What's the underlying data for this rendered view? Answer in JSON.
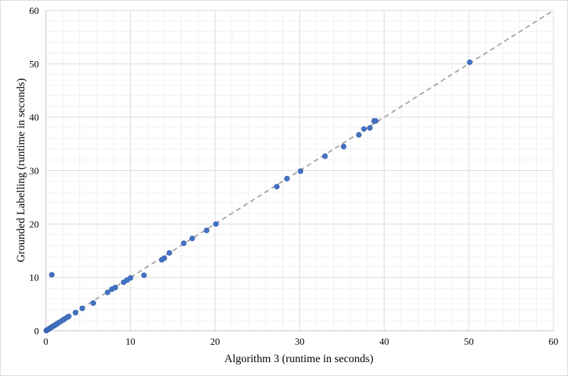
{
  "chart_data": {
    "type": "scatter",
    "title": "",
    "xlabel": "Algorithm 3 (runtime in seconds)",
    "ylabel": "Grounded Labelling (runtime in seconds)",
    "xlim": [
      0,
      60
    ],
    "ylim": [
      0,
      60
    ],
    "xticks": [
      "0",
      "10",
      "20",
      "30",
      "40",
      "50",
      "60"
    ],
    "yticks": [
      "0",
      "10",
      "20",
      "30",
      "40",
      "50",
      "60"
    ],
    "grid": true,
    "minor_grid": true,
    "legend": "none",
    "reference_line": {
      "style": "dashed",
      "from": [
        0,
        0
      ],
      "to": [
        60,
        60
      ]
    },
    "points": [
      [
        0.05,
        0.05
      ],
      [
        0.1,
        0.1
      ],
      [
        0.15,
        0.15
      ],
      [
        0.2,
        0.2
      ],
      [
        0.3,
        0.3
      ],
      [
        0.4,
        0.4
      ],
      [
        0.5,
        0.5
      ],
      [
        0.6,
        0.6
      ],
      [
        0.7,
        0.7
      ],
      [
        0.8,
        0.8
      ],
      [
        0.9,
        0.9
      ],
      [
        1.0,
        1.0
      ],
      [
        1.1,
        1.1
      ],
      [
        1.2,
        1.2
      ],
      [
        1.3,
        1.3
      ],
      [
        1.5,
        1.5
      ],
      [
        1.7,
        1.7
      ],
      [
        2.0,
        2.0
      ],
      [
        2.2,
        2.2
      ],
      [
        2.5,
        2.5
      ],
      [
        2.7,
        2.7
      ],
      [
        3.5,
        3.4
      ],
      [
        4.3,
        4.2
      ],
      [
        5.6,
        5.2
      ],
      [
        7.3,
        7.2
      ],
      [
        7.8,
        7.8
      ],
      [
        8.2,
        8.1
      ],
      [
        9.2,
        9.1
      ],
      [
        9.6,
        9.5
      ],
      [
        10.0,
        9.9
      ],
      [
        11.6,
        10.4
      ],
      [
        0.7,
        10.5
      ],
      [
        13.7,
        13.3
      ],
      [
        14.0,
        13.6
      ],
      [
        14.6,
        14.6
      ],
      [
        16.3,
        16.4
      ],
      [
        17.3,
        17.3
      ],
      [
        19.0,
        18.8
      ],
      [
        20.1,
        20.0
      ],
      [
        27.3,
        27.0
      ],
      [
        28.5,
        28.5
      ],
      [
        30.1,
        29.9
      ],
      [
        33.0,
        32.7
      ],
      [
        35.2,
        34.5
      ],
      [
        37.0,
        36.7
      ],
      [
        37.6,
        37.8
      ],
      [
        38.3,
        38.0
      ],
      [
        38.8,
        39.3
      ],
      [
        39.0,
        39.3
      ],
      [
        50.1,
        50.3
      ]
    ],
    "marker_color": "#4472c4",
    "reference_line_color": "#a5a5a5"
  }
}
